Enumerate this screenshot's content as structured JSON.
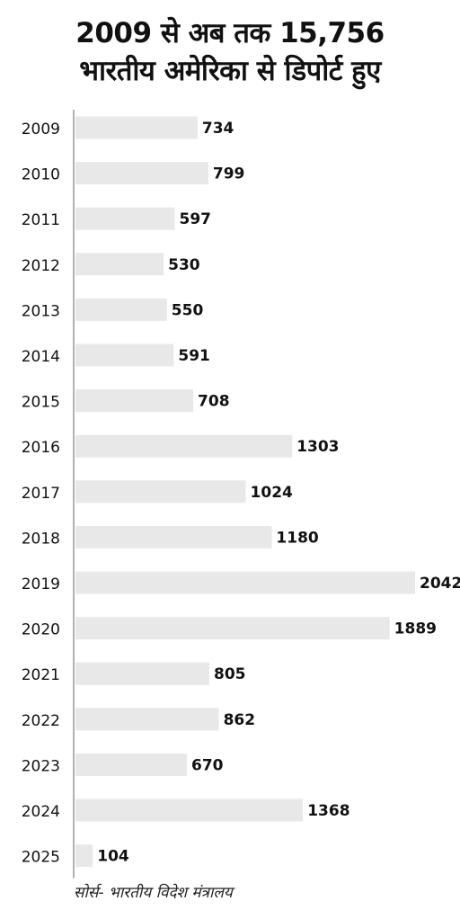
{
  "chart_data": {
    "type": "bar",
    "orientation": "horizontal",
    "title_lines": [
      "2009 से अब तक 15,756",
      "भारतीय अमेरिका से डिपोर्ट हुए"
    ],
    "categories": [
      "2009",
      "2010",
      "2011",
      "2012",
      "2013",
      "2014",
      "2015",
      "2016",
      "2017",
      "2018",
      "2019",
      "2020",
      "2021",
      "2022",
      "2023",
      "2024",
      "2025"
    ],
    "values": [
      734,
      799,
      597,
      530,
      550,
      591,
      708,
      1303,
      1024,
      1180,
      2042,
      1889,
      805,
      862,
      670,
      1368,
      104
    ],
    "value_labels": [
      "734",
      "799",
      "597",
      "530",
      "550",
      "591",
      "708",
      "1303",
      "1024",
      "1180",
      "2042",
      "1889",
      "805",
      "862",
      "670",
      "1368",
      "104"
    ],
    "xlim": [
      0,
      2042
    ],
    "grid": false,
    "legend": "none",
    "bar_color": "#e8e8e8",
    "axis_color": "#999999",
    "label_color": "#111111"
  },
  "source": "सोर्स- भारतीय विदेश मंत्रालय"
}
